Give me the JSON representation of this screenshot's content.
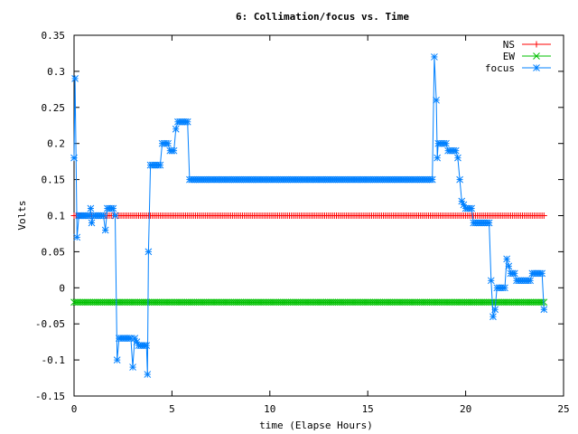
{
  "chart_data": {
    "type": "line",
    "title": "6: Collimation/focus vs. Time",
    "xlabel": "time (Elapse Hours)",
    "ylabel": "Volts",
    "xlim": [
      0,
      25
    ],
    "ylim": [
      -0.15,
      0.35
    ],
    "x_ticks": [
      0,
      5,
      10,
      15,
      20,
      25
    ],
    "y_ticks": [
      -0.15,
      -0.1,
      -0.05,
      0,
      0.05,
      0.1,
      0.15,
      0.2,
      0.25,
      0.3,
      0.35
    ],
    "x_tick_labels": [
      "0",
      "5",
      "10",
      "15",
      "20",
      "25"
    ],
    "y_tick_labels": [
      "-0.15",
      "-0.1",
      "-0.05",
      "0",
      "0.05",
      "0.1",
      "0.15",
      "0.2",
      "0.25",
      "0.3",
      "0.35"
    ],
    "grid": false,
    "legend_position": "top-right",
    "series": [
      {
        "name": "NS",
        "color": "#ff0000",
        "marker": "plus",
        "points": [
          [
            0.0,
            0.1
          ],
          [
            24.0,
            0.1
          ]
        ]
      },
      {
        "name": "EW",
        "color": "#00c000",
        "marker": "cross",
        "points": [
          [
            0.0,
            -0.02
          ],
          [
            24.0,
            -0.02
          ]
        ]
      },
      {
        "name": "focus",
        "color": "#0080ff",
        "marker": "star",
        "points": [
          [
            0.0,
            0.18
          ],
          [
            0.05,
            0.29
          ],
          [
            0.15,
            0.07
          ],
          [
            0.25,
            0.1
          ],
          [
            0.5,
            0.1
          ],
          [
            0.8,
            0.1
          ],
          [
            0.85,
            0.11
          ],
          [
            0.9,
            0.09
          ],
          [
            1.0,
            0.1
          ],
          [
            1.3,
            0.1
          ],
          [
            1.5,
            0.1
          ],
          [
            1.6,
            0.08
          ],
          [
            1.7,
            0.11
          ],
          [
            2.0,
            0.11
          ],
          [
            2.1,
            0.1
          ],
          [
            2.2,
            -0.1
          ],
          [
            2.3,
            -0.07
          ],
          [
            2.6,
            -0.07
          ],
          [
            2.9,
            -0.07
          ],
          [
            3.0,
            -0.11
          ],
          [
            3.1,
            -0.07
          ],
          [
            3.3,
            -0.08
          ],
          [
            3.6,
            -0.08
          ],
          [
            3.7,
            -0.08
          ],
          [
            3.75,
            -0.12
          ],
          [
            3.8,
            0.05
          ],
          [
            3.9,
            0.17
          ],
          [
            4.2,
            0.17
          ],
          [
            4.4,
            0.17
          ],
          [
            4.5,
            0.2
          ],
          [
            4.8,
            0.2
          ],
          [
            4.9,
            0.19
          ],
          [
            5.1,
            0.19
          ],
          [
            5.2,
            0.22
          ],
          [
            5.3,
            0.23
          ],
          [
            5.6,
            0.23
          ],
          [
            5.8,
            0.23
          ],
          [
            5.9,
            0.15
          ],
          [
            6.0,
            0.15
          ],
          [
            8.0,
            0.15
          ],
          [
            10.0,
            0.15
          ],
          [
            12.0,
            0.15
          ],
          [
            14.0,
            0.15
          ],
          [
            16.0,
            0.15
          ],
          [
            18.0,
            0.15
          ],
          [
            18.3,
            0.15
          ],
          [
            18.4,
            0.32
          ],
          [
            18.5,
            0.26
          ],
          [
            18.55,
            0.18
          ],
          [
            18.6,
            0.2
          ],
          [
            19.0,
            0.2
          ],
          [
            19.1,
            0.19
          ],
          [
            19.5,
            0.19
          ],
          [
            19.6,
            0.18
          ],
          [
            19.8,
            0.12
          ],
          [
            20.0,
            0.11
          ],
          [
            20.3,
            0.11
          ],
          [
            20.4,
            0.09
          ],
          [
            20.7,
            0.09
          ],
          [
            21.0,
            0.09
          ],
          [
            21.2,
            0.09
          ],
          [
            21.3,
            0.01
          ],
          [
            21.4,
            -0.04
          ],
          [
            21.5,
            -0.03
          ],
          [
            21.6,
            0.0
          ],
          [
            22.0,
            0.0
          ],
          [
            22.1,
            0.04
          ],
          [
            22.2,
            0.03
          ],
          [
            22.3,
            0.02
          ],
          [
            22.5,
            0.02
          ],
          [
            22.6,
            0.01
          ],
          [
            23.0,
            0.01
          ],
          [
            23.3,
            0.01
          ],
          [
            23.4,
            0.02
          ],
          [
            23.8,
            0.02
          ],
          [
            23.9,
            0.02
          ],
          [
            24.0,
            -0.03
          ]
        ]
      }
    ]
  }
}
